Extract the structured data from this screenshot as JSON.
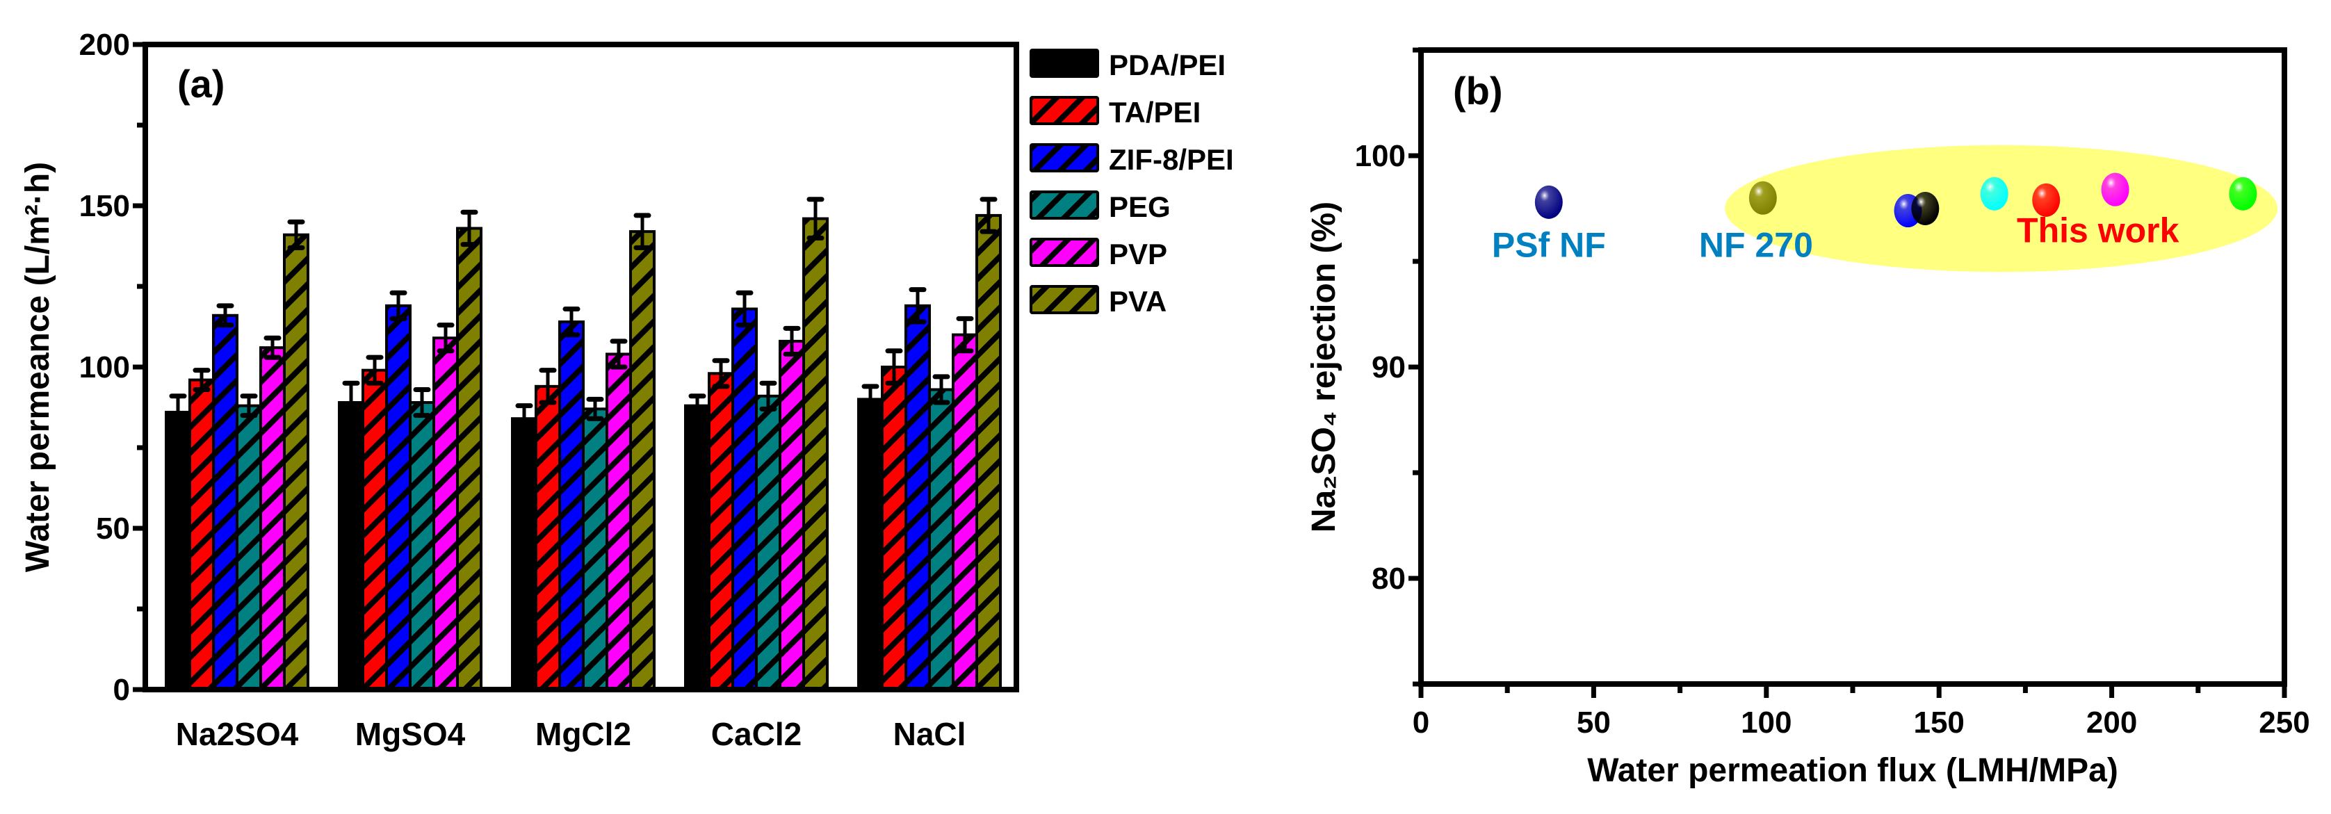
{
  "chart_data": [
    {
      "type": "bar",
      "panel_label": "(a)",
      "xlabel": "",
      "ylabel": "Water permeance (L/m²·h)",
      "ylim": [
        0,
        200
      ],
      "yticks": [
        0,
        50,
        100,
        150,
        200
      ],
      "grid": false,
      "legend_placement": "right-outside",
      "categories": [
        "Na2SO4",
        "MgSO4",
        "MgCl2",
        "CaCl2",
        "NaCl"
      ],
      "series": [
        {
          "name": "PDA/PEI",
          "color": "#000000",
          "hatched": false,
          "values": [
            86,
            89,
            84,
            88,
            90
          ],
          "errors": [
            5,
            6,
            4,
            3,
            4
          ]
        },
        {
          "name": "TA/PEI",
          "color": "#FF0000",
          "hatched": true,
          "values": [
            96,
            99,
            94,
            98,
            100
          ],
          "errors": [
            3,
            4,
            5,
            4,
            5
          ]
        },
        {
          "name": "ZIF-8/PEI",
          "color": "#0000FF",
          "hatched": true,
          "values": [
            116,
            119,
            114,
            118,
            119
          ],
          "errors": [
            3,
            4,
            4,
            5,
            5
          ]
        },
        {
          "name": "PEG",
          "color": "#008080",
          "hatched": true,
          "values": [
            88,
            89,
            87,
            91,
            93
          ],
          "errors": [
            3,
            4,
            3,
            4,
            4
          ]
        },
        {
          "name": "PVP",
          "color": "#FF00FF",
          "hatched": true,
          "values": [
            106,
            109,
            104,
            108,
            110
          ],
          "errors": [
            3,
            4,
            4,
            4,
            5
          ]
        },
        {
          "name": "PVA",
          "color": "#808000",
          "hatched": true,
          "values": [
            141,
            143,
            142,
            146,
            147
          ],
          "errors": [
            4,
            5,
            5,
            6,
            5
          ]
        }
      ]
    },
    {
      "type": "scatter",
      "panel_label": "(b)",
      "xlabel": "Water permeation flux (LMH/MPa)",
      "ylabel": "Na₂SO₄ rejection (%)",
      "xlim": [
        0,
        250
      ],
      "ylim": [
        75,
        105
      ],
      "xticks": [
        0,
        50,
        100,
        150,
        200,
        250
      ],
      "yticks": [
        80,
        90,
        100
      ],
      "grid": false,
      "points": [
        {
          "x": 37,
          "y": 97.8,
          "color": "#000080"
        },
        {
          "x": 99,
          "y": 98.0,
          "color": "#808000"
        },
        {
          "x": 141,
          "y": 97.4,
          "color": "#0000FF"
        },
        {
          "x": 146,
          "y": 97.5,
          "color": "#000000"
        },
        {
          "x": 166,
          "y": 98.2,
          "color": "#00FFFF"
        },
        {
          "x": 181,
          "y": 97.9,
          "color": "#FF0000"
        },
        {
          "x": 201,
          "y": 98.4,
          "color": "#FF00FF"
        },
        {
          "x": 238,
          "y": 98.2,
          "color": "#00FF00"
        }
      ],
      "highlight_region": {
        "cx": 168,
        "cy": 97.5,
        "rx": 80,
        "ry": 3.0,
        "color": "#FFFF80"
      },
      "annotations": [
        {
          "text": "PSf NF",
          "x": 37,
          "y": 95.8,
          "color": "#0080C0"
        },
        {
          "text": "NF 270",
          "x": 97,
          "y": 95.8,
          "color": "#0080C0"
        },
        {
          "text": "This work",
          "x": 196,
          "y": 96.5,
          "color": "#FF0000"
        }
      ]
    }
  ]
}
